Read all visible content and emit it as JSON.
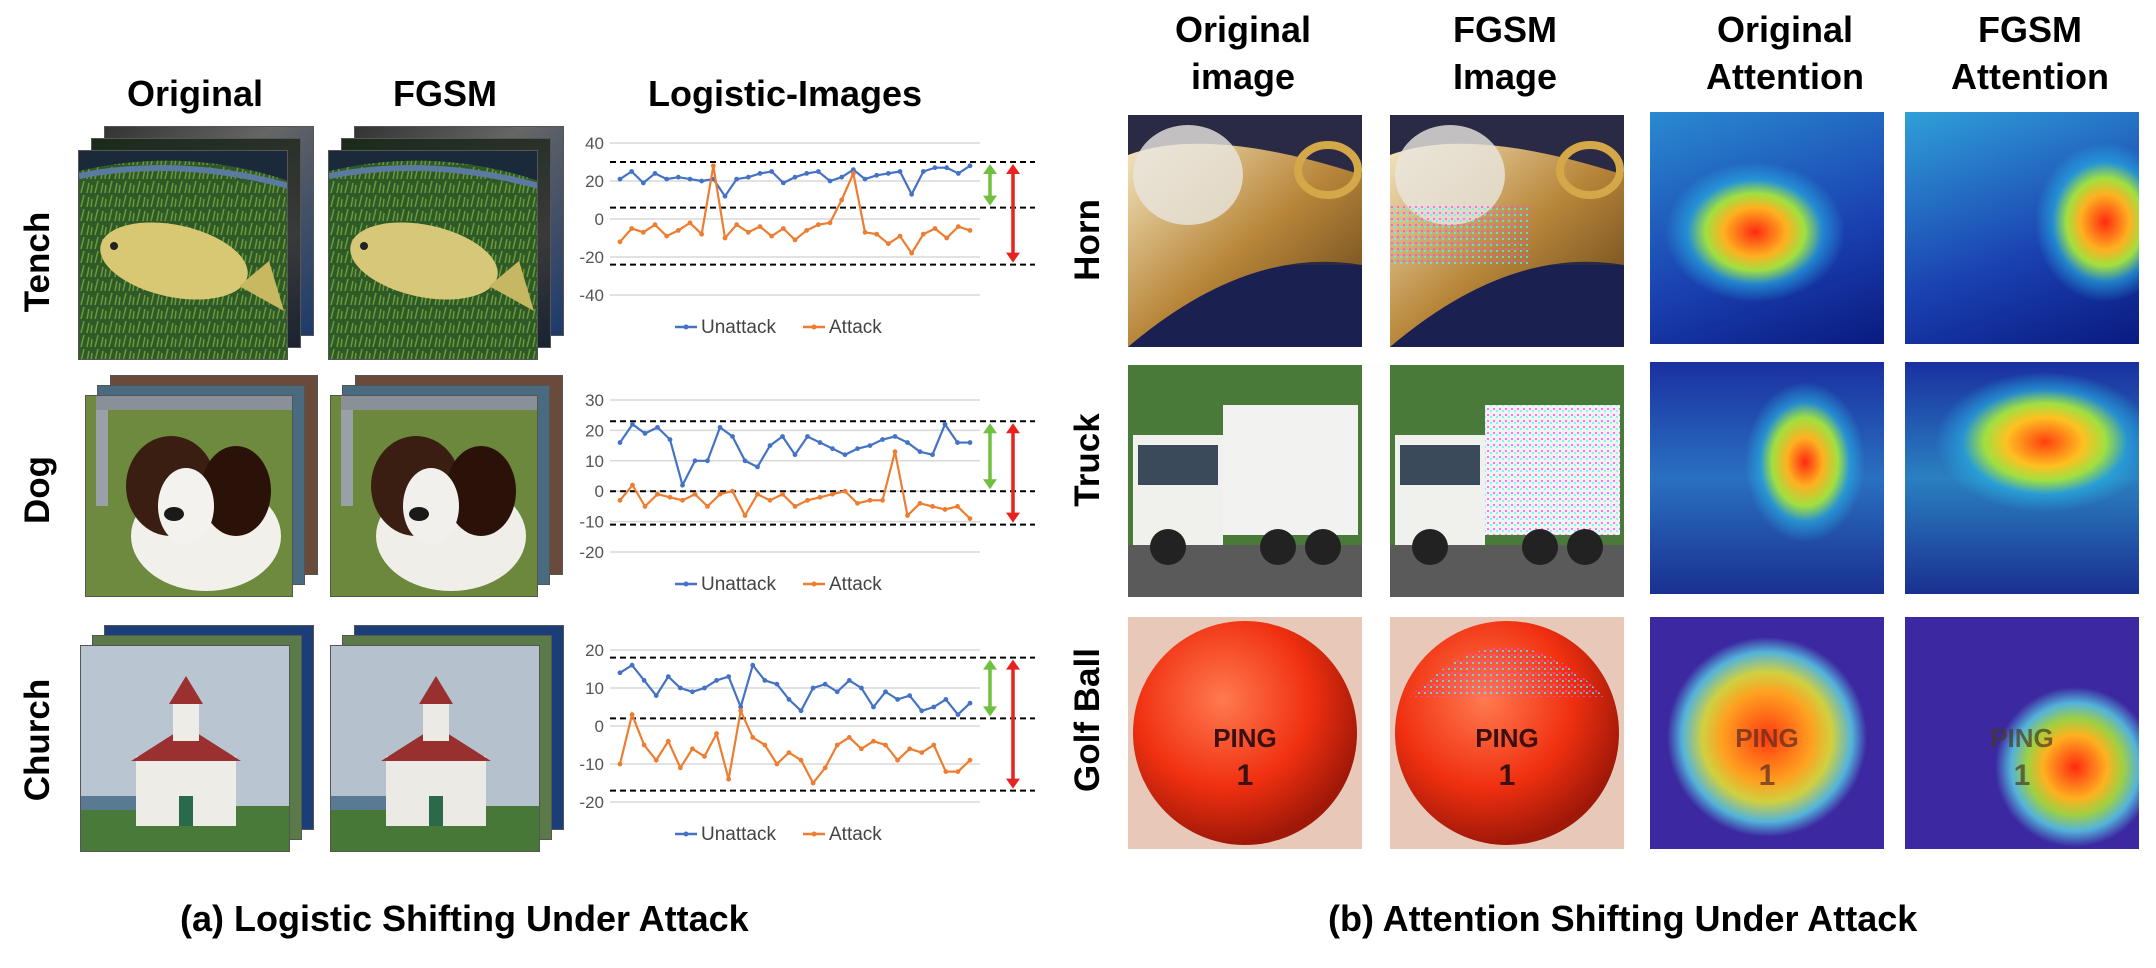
{
  "left": {
    "column_headers": [
      "Original",
      "FGSM",
      "Logistic-Images"
    ],
    "row_labels": [
      "Tench",
      "Dog",
      "Church"
    ],
    "caption": "(a) Logistic Shifting Under Attack"
  },
  "right": {
    "column_headers": [
      [
        "Original",
        "image"
      ],
      [
        "FGSM",
        "Image"
      ],
      [
        "Original",
        "Attention"
      ],
      [
        "FGSM",
        "Attention"
      ]
    ],
    "row_labels": [
      "Horn",
      "Truck",
      "Golf Ball"
    ],
    "caption": "(b) Attention Shifting Under Attack",
    "ball_text": [
      "PING",
      "1"
    ]
  },
  "colors": {
    "unattack": "#4472c4",
    "attack": "#ed7d31",
    "green_arrow": "#70bf41",
    "red_arrow": "#e8231f"
  },
  "chart_data": [
    {
      "type": "line",
      "legend_position": "bottom",
      "ylim": [
        -40,
        40
      ],
      "yticks": [
        -40,
        -20,
        0,
        20,
        40
      ],
      "series": [
        {
          "name": "Unattack",
          "values": [
            21,
            25,
            19,
            24,
            21,
            22,
            21,
            20,
            21,
            12,
            21,
            22,
            24,
            25,
            19,
            22,
            24,
            25,
            20,
            22,
            26,
            21,
            23,
            24,
            25,
            13,
            25,
            27,
            27,
            24,
            28
          ]
        },
        {
          "name": "Attack",
          "values": [
            -12,
            -5,
            -7,
            -3,
            -9,
            -6,
            -2,
            -8,
            28,
            -10,
            -3,
            -7,
            -4,
            -9,
            -5,
            -11,
            -6,
            -3,
            -2,
            10,
            24,
            -7,
            -8,
            -13,
            -9,
            -18,
            -8,
            -5,
            -10,
            -4,
            -6
          ]
        }
      ],
      "reference_lines": [
        30,
        6,
        -24
      ]
    },
    {
      "type": "line",
      "legend_position": "bottom",
      "ylim": [
        -20,
        30
      ],
      "yticks": [
        -20,
        -10,
        0,
        10,
        20,
        30
      ],
      "series": [
        {
          "name": "Unattack",
          "values": [
            16,
            22,
            19,
            21,
            17,
            2,
            10,
            10,
            21,
            18,
            10,
            8,
            15,
            18,
            12,
            18,
            16,
            14,
            12,
            14,
            15,
            17,
            18,
            16,
            13,
            12,
            22,
            16,
            16
          ]
        },
        {
          "name": "Attack",
          "values": [
            -3,
            2,
            -5,
            -1,
            -2,
            -3,
            -1,
            -5,
            -1,
            0,
            -8,
            -1,
            -3,
            -1,
            -5,
            -3,
            -2,
            -1,
            0,
            -4,
            -3,
            -3,
            13,
            -8,
            -4,
            -5,
            -6,
            -5,
            -9
          ]
        }
      ],
      "reference_lines": [
        23,
        0,
        -11
      ]
    },
    {
      "type": "line",
      "legend_position": "bottom",
      "ylim": [
        -20,
        20
      ],
      "yticks": [
        -20,
        -10,
        0,
        10,
        20
      ],
      "series": [
        {
          "name": "Unattack",
          "values": [
            14,
            16,
            12,
            8,
            13,
            10,
            9,
            10,
            12,
            13,
            5,
            16,
            12,
            11,
            7,
            4,
            10,
            11,
            9,
            12,
            10,
            5,
            9,
            7,
            8,
            4,
            5,
            7,
            3,
            6
          ]
        },
        {
          "name": "Attack",
          "values": [
            -10,
            3,
            -5,
            -9,
            -4,
            -11,
            -6,
            -8,
            -2,
            -14,
            4,
            -3,
            -5,
            -10,
            -7,
            -9,
            -15,
            -11,
            -5,
            -3,
            -6,
            -4,
            -5,
            -9,
            -6,
            -7,
            -5,
            -12,
            -12,
            -9
          ]
        }
      ],
      "reference_lines": [
        18,
        2,
        -17
      ]
    }
  ]
}
